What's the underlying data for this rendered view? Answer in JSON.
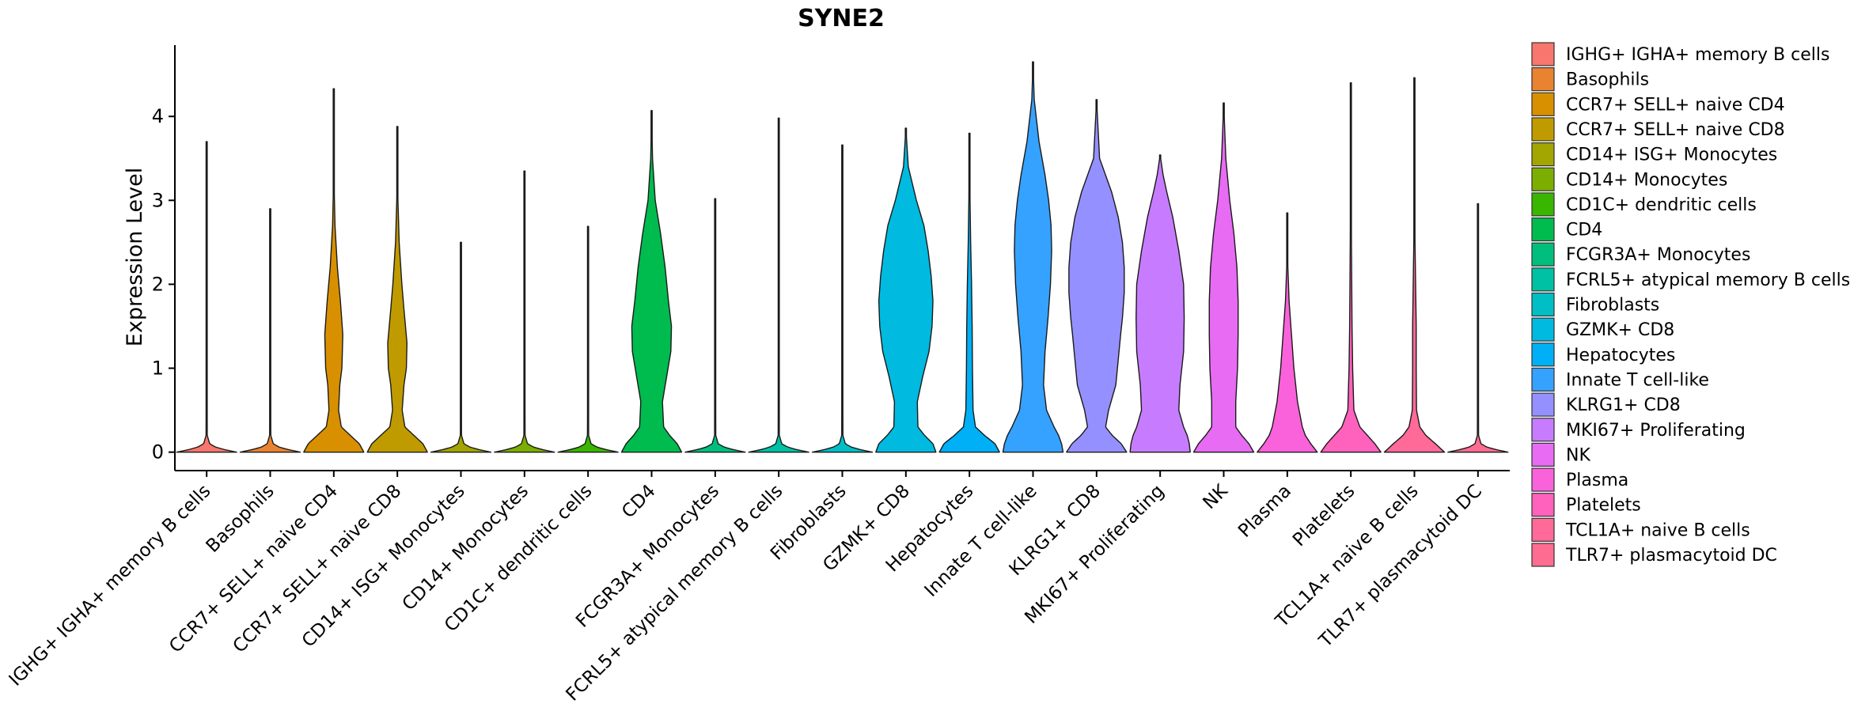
{
  "chart_data": {
    "type": "violin",
    "title": "SYNE2",
    "xlabel": "",
    "ylabel": "Expression Level",
    "ylim": [
      -0.22,
      4.85
    ],
    "yticks": [
      0,
      1,
      2,
      3,
      4
    ],
    "grid": false,
    "legend_position": "right",
    "categories": [
      "IGHG+ IGHA+ memory B cells",
      "Basophils",
      "CCR7+ SELL+ naive CD4",
      "CCR7+ SELL+ naive CD8",
      "CD14+ ISG+ Monocytes",
      "CD14+ Monocytes",
      "CD1C+ dendritic cells",
      "CD4",
      "FCGR3A+ Monocytes",
      "FCRL5+ atypical memory B cells",
      "Fibroblasts",
      "GZMK+ CD8",
      "Hepatocytes",
      "Innate T cell-like",
      "KLRG1+ CD8",
      "MKI67+ Proliferating",
      "NK",
      "Plasma",
      "Platelets",
      "TCL1A+ naive B cells",
      "TLR7+ plasmacytoid DC"
    ],
    "legend": [
      " IGHG+ IGHA+ memory B cells",
      "Basophils",
      "CCR7+ SELL+ naive CD4",
      "CCR7+ SELL+ naive CD8",
      "CD14+ ISG+ Monocytes",
      "CD14+ Monocytes",
      "CD1C+ dendritic cells",
      "CD4",
      "FCGR3A+ Monocytes",
      "FCRL5+ atypical memory B cells",
      "Fibroblasts",
      "GZMK+ CD8",
      "Hepatocytes",
      "Innate T cell-like",
      "KLRG1+ CD8",
      "MKI67+ Proliferating",
      "NK",
      "Plasma",
      "Platelets",
      "TCL1A+ naive B cells",
      "TLR7+ plasmacytoid DC"
    ],
    "colors": [
      "#F8766D",
      "#EA8331",
      "#D89000",
      "#C09B00",
      "#A3A500",
      "#7CAE00",
      "#39B600",
      "#00BB4E",
      "#00BF7D",
      "#00C1A3",
      "#00BFC4",
      "#00BAE0",
      "#00B0F6",
      "#35A2FF",
      "#9590FF",
      "#C77CFF",
      "#E76BF3",
      "#FA62DB",
      "#FF62BC",
      "#FF6A98",
      "#FF6C91"
    ],
    "y_max": [
      3.7,
      2.9,
      4.33,
      3.88,
      2.5,
      3.35,
      2.69,
      4.07,
      3.02,
      3.98,
      3.66,
      3.86,
      3.8,
      4.65,
      4.2,
      3.54,
      4.16,
      2.85,
      4.4,
      4.46,
      2.96
    ],
    "density_profiles": [
      [
        [
          0,
          1
        ],
        [
          0.03,
          0.6
        ],
        [
          0.06,
          0.3
        ],
        [
          0.1,
          0.1
        ],
        [
          0.2,
          0.02
        ],
        [
          3.7,
          0
        ]
      ],
      [
        [
          0,
          1
        ],
        [
          0.03,
          0.6
        ],
        [
          0.06,
          0.3
        ],
        [
          0.1,
          0.1
        ],
        [
          0.2,
          0.02
        ],
        [
          2.9,
          0
        ]
      ],
      [
        [
          0,
          1
        ],
        [
          0.1,
          0.85
        ],
        [
          0.2,
          0.55
        ],
        [
          0.3,
          0.25
        ],
        [
          0.5,
          0.16
        ],
        [
          0.8,
          0.2
        ],
        [
          1.0,
          0.27
        ],
        [
          1.4,
          0.3
        ],
        [
          1.8,
          0.22
        ],
        [
          2.2,
          0.12
        ],
        [
          2.7,
          0.04
        ],
        [
          3.2,
          0.01
        ],
        [
          4.33,
          0
        ]
      ],
      [
        [
          0,
          1
        ],
        [
          0.1,
          0.85
        ],
        [
          0.2,
          0.55
        ],
        [
          0.3,
          0.25
        ],
        [
          0.5,
          0.16
        ],
        [
          0.8,
          0.22
        ],
        [
          1.0,
          0.3
        ],
        [
          1.3,
          0.32
        ],
        [
          1.7,
          0.22
        ],
        [
          2.0,
          0.15
        ],
        [
          2.5,
          0.06
        ],
        [
          3.0,
          0.02
        ],
        [
          3.88,
          0
        ]
      ],
      [
        [
          0,
          1
        ],
        [
          0.03,
          0.6
        ],
        [
          0.06,
          0.3
        ],
        [
          0.1,
          0.1
        ],
        [
          0.2,
          0.02
        ],
        [
          2.5,
          0
        ]
      ],
      [
        [
          0,
          1
        ],
        [
          0.03,
          0.6
        ],
        [
          0.06,
          0.3
        ],
        [
          0.1,
          0.1
        ],
        [
          0.2,
          0.02
        ],
        [
          3.35,
          0
        ]
      ],
      [
        [
          0,
          1
        ],
        [
          0.03,
          0.6
        ],
        [
          0.06,
          0.3
        ],
        [
          0.1,
          0.1
        ],
        [
          0.2,
          0.02
        ],
        [
          2.69,
          0
        ]
      ],
      [
        [
          0,
          1
        ],
        [
          0.1,
          0.85
        ],
        [
          0.2,
          0.6
        ],
        [
          0.3,
          0.4
        ],
        [
          0.6,
          0.36
        ],
        [
          0.9,
          0.5
        ],
        [
          1.2,
          0.64
        ],
        [
          1.5,
          0.66
        ],
        [
          1.8,
          0.56
        ],
        [
          2.2,
          0.45
        ],
        [
          2.6,
          0.3
        ],
        [
          3.0,
          0.12
        ],
        [
          3.5,
          0.03
        ],
        [
          4.07,
          0
        ]
      ],
      [
        [
          0,
          1
        ],
        [
          0.03,
          0.6
        ],
        [
          0.06,
          0.3
        ],
        [
          0.1,
          0.1
        ],
        [
          0.2,
          0.02
        ],
        [
          3.02,
          0
        ]
      ],
      [
        [
          0,
          1
        ],
        [
          0.03,
          0.6
        ],
        [
          0.06,
          0.3
        ],
        [
          0.1,
          0.1
        ],
        [
          0.2,
          0.02
        ],
        [
          3.98,
          0
        ]
      ],
      [
        [
          0,
          1
        ],
        [
          0.03,
          0.6
        ],
        [
          0.06,
          0.3
        ],
        [
          0.1,
          0.1
        ],
        [
          0.2,
          0.02
        ],
        [
          3.66,
          0
        ]
      ],
      [
        [
          0,
          1
        ],
        [
          0.1,
          0.9
        ],
        [
          0.2,
          0.62
        ],
        [
          0.3,
          0.4
        ],
        [
          0.6,
          0.38
        ],
        [
          0.9,
          0.56
        ],
        [
          1.2,
          0.77
        ],
        [
          1.5,
          0.87
        ],
        [
          1.8,
          0.9
        ],
        [
          2.1,
          0.84
        ],
        [
          2.4,
          0.74
        ],
        [
          2.7,
          0.6
        ],
        [
          3.0,
          0.35
        ],
        [
          3.4,
          0.08
        ],
        [
          3.86,
          0
        ]
      ],
      [
        [
          0,
          1
        ],
        [
          0.1,
          0.85
        ],
        [
          0.2,
          0.5
        ],
        [
          0.3,
          0.2
        ],
        [
          0.5,
          0.12
        ],
        [
          1.0,
          0.1
        ],
        [
          1.5,
          0.09
        ],
        [
          2.0,
          0.07
        ],
        [
          2.5,
          0.04
        ],
        [
          3.0,
          0.02
        ],
        [
          3.8,
          0
        ]
      ],
      [
        [
          0,
          1
        ],
        [
          0.1,
          0.95
        ],
        [
          0.2,
          0.85
        ],
        [
          0.3,
          0.7
        ],
        [
          0.5,
          0.45
        ],
        [
          0.8,
          0.35
        ],
        [
          1.2,
          0.4
        ],
        [
          1.6,
          0.5
        ],
        [
          2.0,
          0.58
        ],
        [
          2.4,
          0.62
        ],
        [
          2.7,
          0.6
        ],
        [
          3.0,
          0.52
        ],
        [
          3.3,
          0.4
        ],
        [
          3.7,
          0.2
        ],
        [
          4.2,
          0.04
        ],
        [
          4.65,
          0
        ]
      ],
      [
        [
          0,
          1
        ],
        [
          0.1,
          0.82
        ],
        [
          0.2,
          0.52
        ],
        [
          0.3,
          0.3
        ],
        [
          0.5,
          0.4
        ],
        [
          0.8,
          0.64
        ],
        [
          1.1,
          0.72
        ],
        [
          1.4,
          0.8
        ],
        [
          1.6,
          0.86
        ],
        [
          1.9,
          0.92
        ],
        [
          2.2,
          0.92
        ],
        [
          2.5,
          0.86
        ],
        [
          2.8,
          0.72
        ],
        [
          3.1,
          0.5
        ],
        [
          3.5,
          0.1
        ],
        [
          4.2,
          0
        ]
      ],
      [
        [
          0,
          1
        ],
        [
          0.1,
          0.97
        ],
        [
          0.2,
          0.9
        ],
        [
          0.3,
          0.78
        ],
        [
          0.5,
          0.62
        ],
        [
          0.8,
          0.66
        ],
        [
          1.2,
          0.78
        ],
        [
          1.6,
          0.8
        ],
        [
          2.0,
          0.78
        ],
        [
          2.4,
          0.62
        ],
        [
          2.8,
          0.42
        ],
        [
          3.1,
          0.22
        ],
        [
          3.3,
          0.1
        ],
        [
          3.54,
          0
        ]
      ],
      [
        [
          0,
          1
        ],
        [
          0.1,
          0.84
        ],
        [
          0.2,
          0.6
        ],
        [
          0.3,
          0.4
        ],
        [
          0.6,
          0.4
        ],
        [
          1.0,
          0.46
        ],
        [
          1.4,
          0.48
        ],
        [
          1.8,
          0.48
        ],
        [
          2.2,
          0.44
        ],
        [
          2.6,
          0.34
        ],
        [
          3.0,
          0.2
        ],
        [
          3.5,
          0.07
        ],
        [
          4.16,
          0
        ]
      ],
      [
        [
          0,
          1
        ],
        [
          0.1,
          0.78
        ],
        [
          0.2,
          0.6
        ],
        [
          0.3,
          0.5
        ],
        [
          0.6,
          0.34
        ],
        [
          1.0,
          0.22
        ],
        [
          1.4,
          0.14
        ],
        [
          1.8,
          0.06
        ],
        [
          2.2,
          0.02
        ],
        [
          2.85,
          0
        ]
      ],
      [
        [
          0,
          1
        ],
        [
          0.1,
          0.8
        ],
        [
          0.2,
          0.55
        ],
        [
          0.3,
          0.3
        ],
        [
          0.5,
          0.1
        ],
        [
          1.0,
          0.06
        ],
        [
          1.5,
          0.04
        ],
        [
          2.0,
          0.03
        ],
        [
          2.5,
          0.02
        ],
        [
          3.0,
          0.015
        ],
        [
          4.4,
          0
        ]
      ],
      [
        [
          0,
          1
        ],
        [
          0.1,
          0.7
        ],
        [
          0.2,
          0.38
        ],
        [
          0.3,
          0.18
        ],
        [
          0.5,
          0.07
        ],
        [
          1.0,
          0.06
        ],
        [
          1.5,
          0.06
        ],
        [
          2.0,
          0.04
        ],
        [
          2.5,
          0.02
        ],
        [
          3.0,
          0.01
        ],
        [
          4.46,
          0
        ]
      ],
      [
        [
          0,
          1
        ],
        [
          0.03,
          0.6
        ],
        [
          0.06,
          0.3
        ],
        [
          0.1,
          0.1
        ],
        [
          0.2,
          0.02
        ],
        [
          2.96,
          0
        ]
      ]
    ]
  }
}
